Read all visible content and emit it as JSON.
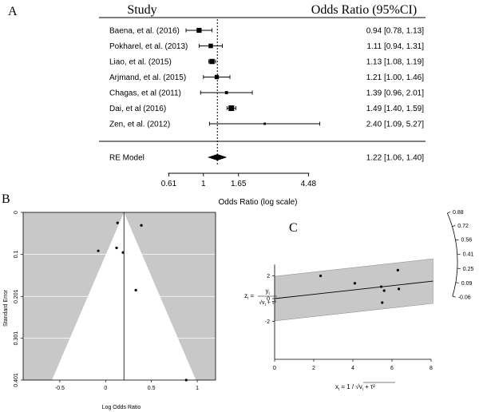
{
  "chart_data": [
    {
      "panel_label": "A",
      "type": "forest",
      "header_left": "Study",
      "header_right": "Odds Ratio (95%CI)",
      "xlabel": "Odds Ratio (log scale)",
      "x_scale": "log",
      "xlim": [
        0.5,
        5.0
      ],
      "ticks": [
        {
          "value": 0.61,
          "label": "0.61"
        },
        {
          "value": 1.0,
          "label": "1"
        },
        {
          "value": 1.65,
          "label": "1.65"
        },
        {
          "value": 4.48,
          "label": "4.48"
        }
      ],
      "reference_line": 1.22,
      "studies": [
        {
          "name": "Baena, et al. (2016)",
          "or": 0.94,
          "lo": 0.78,
          "hi": 1.13,
          "ci_text": "0.94 [0.78, 1.13]",
          "weight": 0.7
        },
        {
          "name": "Pokharel, et al. (2013)",
          "or": 1.11,
          "lo": 0.94,
          "hi": 1.31,
          "ci_text": "1.11 [0.94, 1.31]",
          "weight": 0.6
        },
        {
          "name": "Liao, et al. (2015)",
          "or": 1.13,
          "lo": 1.08,
          "hi": 1.19,
          "ci_text": "1.13 [1.08, 1.19]",
          "weight": 0.75
        },
        {
          "name": "Arjmand, et al. (2015)",
          "or": 1.21,
          "lo": 1.0,
          "hi": 1.46,
          "ci_text": "1.21 [1.00, 1.46]",
          "weight": 0.55
        },
        {
          "name": "Chagas, et al (2011)",
          "or": 1.39,
          "lo": 0.96,
          "hi": 2.01,
          "ci_text": "1.39 [0.96, 2.01]",
          "weight": 0.3
        },
        {
          "name": "Dai, et al (2016)",
          "or": 1.49,
          "lo": 1.4,
          "hi": 1.59,
          "ci_text": "1.49 [1.40, 1.59]",
          "weight": 0.85
        },
        {
          "name": "Zen, et al. (2012)",
          "or": 2.4,
          "lo": 1.09,
          "hi": 5.27,
          "ci_text": "2.40 [1.09, 5.27]",
          "weight": 0.15
        }
      ],
      "summary": {
        "name": "RE Model",
        "or": 1.22,
        "lo": 1.06,
        "hi": 1.4,
        "ci_text": "1.22 [1.06, 1.40]"
      }
    },
    {
      "panel_label": "B",
      "type": "scatter",
      "subtype": "funnel",
      "xlabel": "Log Odds Ratio",
      "ylabel": "Standard Error",
      "xlim": [
        -0.9,
        1.2
      ],
      "ylim": [
        0.401,
        0
      ],
      "x_ticks": [
        -0.5,
        0,
        0.5,
        1
      ],
      "x_tick_labels": [
        "-0.5",
        "0",
        "0.5",
        "1"
      ],
      "y_ticks": [
        0,
        0.1,
        0.201,
        0.301,
        0.401
      ],
      "y_tick_labels": [
        "0",
        "0.1",
        "0.201",
        "0.301",
        "0.401"
      ],
      "center": 0.2,
      "points": [
        {
          "x": 0.13,
          "y": 0.025
        },
        {
          "x": 0.39,
          "y": 0.031
        },
        {
          "x": 0.12,
          "y": 0.085
        },
        {
          "x": -0.08,
          "y": 0.092
        },
        {
          "x": 0.19,
          "y": 0.096
        },
        {
          "x": 0.33,
          "y": 0.186
        },
        {
          "x": 0.88,
          "y": 0.401
        }
      ]
    },
    {
      "panel_label": "C",
      "type": "scatter",
      "subtype": "radial",
      "xlabel": "x_i = 1/√(v_i + τ²)",
      "ylabel": "z_i = y_i / √(v_i + τ²)",
      "xlim": [
        0,
        8
      ],
      "ylim": [
        -3,
        3
      ],
      "x_ticks": [
        0,
        2,
        4,
        6,
        8
      ],
      "x_tick_labels": [
        "0",
        "2",
        "4",
        "6",
        "8"
      ],
      "y_ticks": [
        -2,
        0,
        2
      ],
      "y_tick_labels": [
        "-2",
        "0",
        "2"
      ],
      "slope": 0.19,
      "band": 1.96,
      "points": [
        {
          "x": 2.35,
          "y": 2.0
        },
        {
          "x": 4.1,
          "y": 1.35
        },
        {
          "x": 5.45,
          "y": 1.05
        },
        {
          "x": 5.6,
          "y": 0.7
        },
        {
          "x": 5.5,
          "y": -0.35
        },
        {
          "x": 6.3,
          "y": 2.5
        },
        {
          "x": 6.35,
          "y": 0.85
        }
      ],
      "arc_labels": [
        "0.88",
        "0.72",
        "0.56",
        "0.41",
        "0.25",
        "0.09",
        "-0.06"
      ]
    }
  ]
}
